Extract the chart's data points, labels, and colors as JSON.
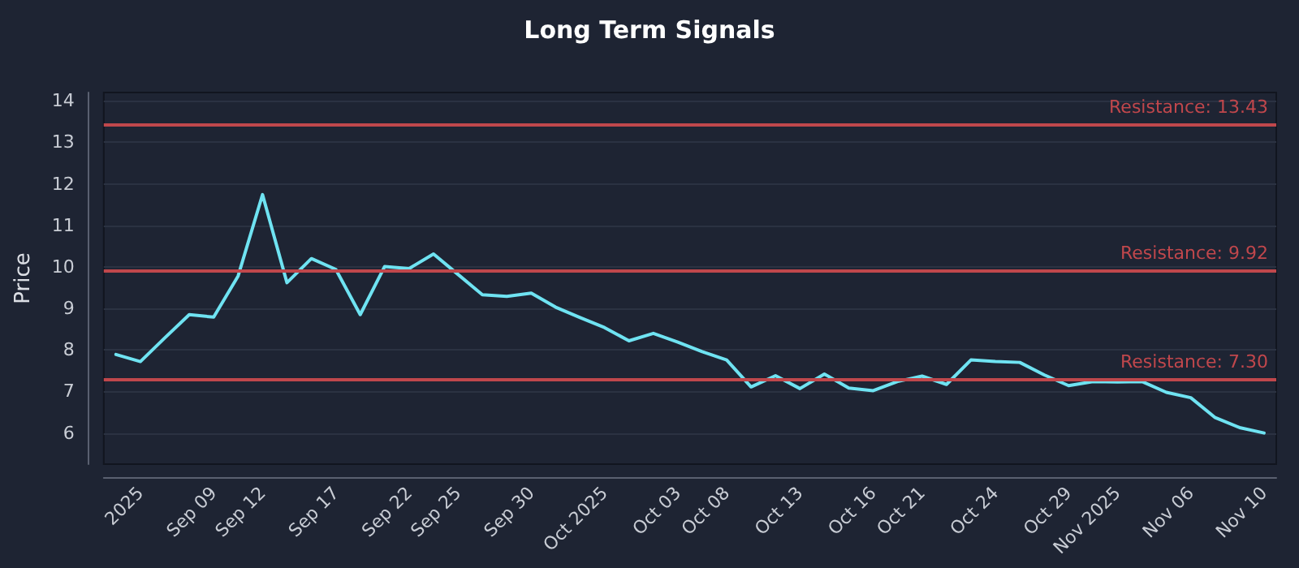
{
  "chart_data": {
    "type": "line",
    "title": "Long Term Signals",
    "ylabel": "Price",
    "categories": [
      null,
      "2025",
      null,
      null,
      "Sep 09",
      null,
      "Sep 12",
      null,
      null,
      "Sep 17",
      null,
      null,
      "Sep 22",
      null,
      "Sep 25",
      null,
      null,
      "Sep 30",
      null,
      null,
      "Oct 2025",
      null,
      null,
      "Oct 03",
      null,
      "Oct 08",
      null,
      null,
      "Oct 13",
      null,
      null,
      "Oct 16",
      null,
      "Oct 21",
      null,
      null,
      "Oct 24",
      null,
      null,
      "Oct 29",
      null,
      "Nov 2025",
      null,
      null,
      "Nov 06",
      null,
      null,
      "Nov 10"
    ],
    "series": [
      {
        "color": "#6fe3f2",
        "values": [
          7.89,
          7.72,
          8.29,
          8.85,
          8.79,
          9.78,
          11.74,
          9.62,
          10.2,
          9.94,
          8.85,
          10.01,
          9.96,
          10.31,
          9.82,
          9.33,
          9.29,
          9.37,
          9.03,
          8.78,
          8.54,
          8.22,
          8.4,
          8.19,
          7.96,
          7.76,
          7.11,
          7.38,
          7.07,
          7.42,
          7.08,
          7.02,
          7.24,
          7.37,
          7.17,
          7.76,
          7.72,
          7.7,
          7.4,
          7.14,
          7.24,
          7.23,
          7.24,
          6.98,
          6.85,
          6.37,
          6.13,
          6.0
        ]
      }
    ],
    "ylim": [
      5.25,
      14.2
    ],
    "yticks": [
      6,
      7,
      8,
      9,
      10,
      11,
      12,
      13,
      14
    ],
    "grid": "y",
    "marker": "none",
    "line_style": "solid",
    "ref_lines": [
      {
        "axis": "y",
        "value": 13.43,
        "label": "Resistance: 13.43",
        "color": "#c0474c"
      },
      {
        "axis": "y",
        "value": 9.92,
        "label": "Resistance: 9.92",
        "color": "#c0474c"
      },
      {
        "axis": "y",
        "value": 7.3,
        "label": "Resistance: 7.30",
        "color": "#c0474c"
      }
    ]
  }
}
